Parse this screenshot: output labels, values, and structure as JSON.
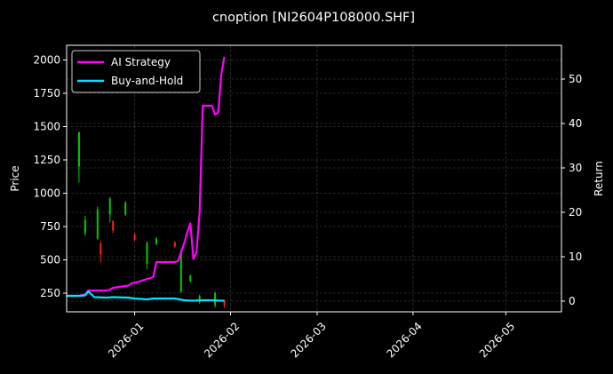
{
  "chart_data": {
    "type": "line",
    "title": "cnoption [NI2604P108000.SHF]",
    "xlabel": "",
    "ylabel_left": "Price",
    "ylabel_right": "Return",
    "x_axis": {
      "start": "2025-12-10",
      "end": "2026-05-19",
      "ticks": [
        "2026-01",
        "2026-02",
        "2026-03",
        "2026-04",
        "2026-05"
      ],
      "tick_dates": [
        "2026-01-01",
        "2026-02-01",
        "2026-03-01",
        "2026-04-01",
        "2026-05-01"
      ]
    },
    "y_left": {
      "ylim": [
        110,
        2110
      ],
      "ticks": [
        250,
        500,
        750,
        1000,
        1250,
        1500,
        1750,
        2000
      ]
    },
    "y_right": {
      "ylim": [
        -2.4,
        57.6
      ],
      "ticks": [
        0,
        10,
        20,
        30,
        40,
        50
      ]
    },
    "grid": true,
    "legend_position": "top-left",
    "series": [
      {
        "name": "AI Strategy",
        "axis": "right",
        "color": "#ff00ff",
        "x": [
          "2025-12-10",
          "2025-12-14",
          "2025-12-16",
          "2025-12-17",
          "2025-12-20",
          "2025-12-23",
          "2025-12-24",
          "2025-12-25",
          "2025-12-30",
          "2025-12-31",
          "2026-01-02",
          "2026-01-05",
          "2026-01-07",
          "2026-01-08",
          "2026-01-14",
          "2026-01-15",
          "2026-01-16",
          "2026-01-17",
          "2026-01-18",
          "2026-01-19",
          "2026-01-20",
          "2026-01-21",
          "2026-01-22",
          "2026-01-23",
          "2026-01-26",
          "2026-01-27",
          "2026-01-28",
          "2026-01-29",
          "2026-01-30"
        ],
        "values": [
          1.2,
          1.2,
          1.5,
          2.4,
          2.4,
          2.4,
          2.6,
          3.0,
          3.5,
          4.0,
          4.3,
          5.0,
          5.4,
          8.8,
          8.8,
          9.0,
          11.0,
          13.0,
          15.5,
          17.5,
          9.5,
          11.0,
          20.0,
          44.0,
          44.0,
          42.0,
          42.5,
          51.0,
          55.0
        ]
      },
      {
        "name": "Buy-and-Hold",
        "axis": "right",
        "color": "#00e5ff",
        "x": [
          "2025-12-10",
          "2025-12-14",
          "2025-12-16",
          "2025-12-17",
          "2025-12-19",
          "2025-12-23",
          "2025-12-25",
          "2025-12-30",
          "2026-01-01",
          "2026-01-05",
          "2026-01-07",
          "2026-01-10",
          "2026-01-14",
          "2026-01-17",
          "2026-01-20",
          "2026-01-23",
          "2026-01-26",
          "2026-01-29",
          "2026-01-30"
        ],
        "values": [
          1.2,
          1.2,
          1.3,
          2.2,
          0.9,
          0.8,
          0.9,
          0.8,
          0.6,
          0.4,
          0.6,
          0.6,
          0.6,
          0.2,
          0.1,
          0.2,
          0.2,
          0.1,
          0.1
        ]
      }
    ],
    "candles": [
      {
        "x": "2025-12-14",
        "open": 1200,
        "close": 1460,
        "high": 1460,
        "low": 1080,
        "color": "#00cc00"
      },
      {
        "x": "2025-12-16",
        "open": 700,
        "close": 800,
        "high": 830,
        "low": 680,
        "color": "#00cc00"
      },
      {
        "x": "2025-12-20",
        "open": 660,
        "close": 880,
        "high": 900,
        "low": 650,
        "color": "#00cc00"
      },
      {
        "x": "2025-12-21",
        "open": 620,
        "close": 540,
        "high": 640,
        "low": 480,
        "color": "#ff2020"
      },
      {
        "x": "2025-12-24",
        "open": 840,
        "close": 960,
        "high": 970,
        "low": 780,
        "color": "#00cc00"
      },
      {
        "x": "2025-12-25",
        "open": 790,
        "close": 720,
        "high": 800,
        "low": 700,
        "color": "#ff2020"
      },
      {
        "x": "2025-12-29",
        "open": 840,
        "close": 930,
        "high": 940,
        "low": 830,
        "color": "#00cc00"
      },
      {
        "x": "2026-01-01",
        "open": 690,
        "close": 650,
        "high": 700,
        "low": 640,
        "color": "#ff2020"
      },
      {
        "x": "2026-01-05",
        "open": 470,
        "close": 630,
        "high": 640,
        "low": 430,
        "color": "#00cc00"
      },
      {
        "x": "2026-01-08",
        "open": 620,
        "close": 660,
        "high": 670,
        "low": 610,
        "color": "#00cc00"
      },
      {
        "x": "2026-01-14",
        "open": 630,
        "close": 600,
        "high": 640,
        "low": 590,
        "color": "#ff2020"
      },
      {
        "x": "2026-01-16",
        "open": 260,
        "close": 560,
        "high": 580,
        "low": 250,
        "color": "#00cc00"
      },
      {
        "x": "2026-01-19",
        "open": 340,
        "close": 380,
        "high": 390,
        "low": 330,
        "color": "#00cc00"
      },
      {
        "x": "2026-01-22",
        "open": 200,
        "close": 230,
        "high": 240,
        "low": 170,
        "color": "#00cc00"
      },
      {
        "x": "2026-01-27",
        "open": 160,
        "close": 250,
        "high": 260,
        "low": 140,
        "color": "#00cc00"
      },
      {
        "x": "2026-01-30",
        "open": 200,
        "close": 160,
        "high": 200,
        "low": 140,
        "color": "#ff2020"
      }
    ]
  }
}
